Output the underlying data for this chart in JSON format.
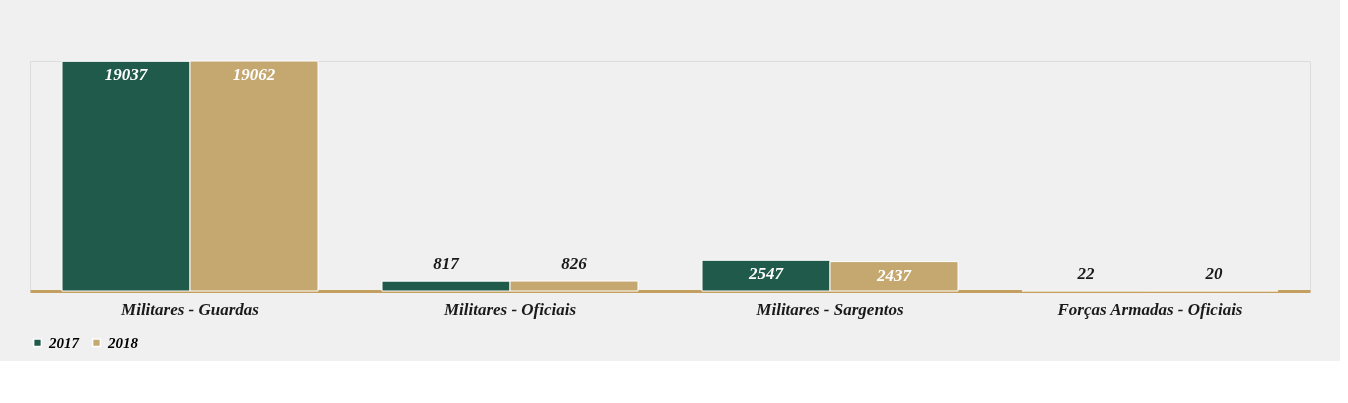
{
  "chart_data": {
    "type": "bar",
    "categories": [
      "Militares - Guardas",
      "Militares - Oficiais",
      "Militares - Sargentos",
      "Forças Armadas - Oficiais"
    ],
    "series": [
      {
        "name": "2017",
        "color": "#1f5a4a",
        "values": [
          19037,
          817,
          2547,
          22
        ]
      },
      {
        "name": "2018",
        "color": "#c4a870",
        "values": [
          19062,
          826,
          2437,
          20
        ]
      }
    ],
    "data_labels": true,
    "legend": "bottom"
  }
}
